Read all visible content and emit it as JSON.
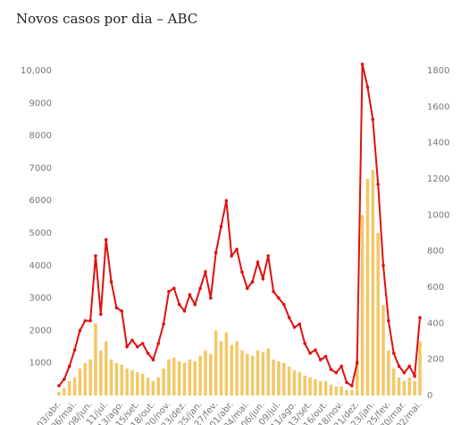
{
  "chart_data": {
    "type": "combo",
    "title": "Novos casos por dia – ABC",
    "categories": [
      "03/abr.",
      null,
      null,
      "06/mai.",
      null,
      null,
      "08/jun.",
      null,
      null,
      "11/jul.",
      null,
      null,
      "13/ago.",
      null,
      null,
      "15/set.",
      null,
      null,
      "18/out.",
      null,
      null,
      "20/nov.",
      null,
      null,
      "23/dez.",
      null,
      null,
      "25/jan.",
      null,
      null,
      "27/fev.",
      null,
      null,
      "01/abr.",
      null,
      null,
      "04/mai.",
      null,
      null,
      "06/jun.",
      null,
      null,
      "09/jul.",
      null,
      null,
      "11/ago.",
      null,
      null,
      "13/set.",
      null,
      null,
      "16/out.",
      null,
      null,
      "18/nov.",
      null,
      null,
      "21/dez.",
      null,
      null,
      "23/jan.",
      null,
      null,
      "25/fev.",
      null,
      null,
      "30/mar.",
      null,
      null,
      "02/mai."
    ],
    "series": [
      {
        "type": "bar",
        "axis": "y2",
        "color": "#f2c866",
        "values": [
          20,
          40,
          80,
          100,
          150,
          180,
          200,
          400,
          250,
          300,
          200,
          180,
          170,
          150,
          140,
          130,
          120,
          100,
          80,
          100,
          150,
          200,
          210,
          190,
          180,
          200,
          190,
          220,
          250,
          230,
          360,
          300,
          350,
          280,
          300,
          250,
          230,
          220,
          250,
          240,
          260,
          200,
          190,
          180,
          160,
          140,
          130,
          110,
          100,
          90,
          80,
          80,
          60,
          50,
          50,
          30,
          30,
          200,
          1000,
          1200,
          1250,
          900,
          500,
          250,
          150,
          100,
          80,
          100,
          80,
          300
        ]
      },
      {
        "type": "line",
        "axis": "y",
        "color": "#e01010",
        "values": [
          300,
          500,
          900,
          1400,
          2000,
          2300,
          2300,
          4300,
          2500,
          4800,
          3500,
          2700,
          2600,
          1500,
          1700,
          1500,
          1600,
          1300,
          1100,
          1600,
          2200,
          3200,
          3300,
          2800,
          2600,
          3100,
          2800,
          3300,
          3800,
          3000,
          4400,
          5200,
          6000,
          4300,
          4500,
          3800,
          3300,
          3500,
          4100,
          3600,
          4300,
          3200,
          3000,
          2800,
          2400,
          2100,
          2200,
          1600,
          1300,
          1400,
          1100,
          1200,
          800,
          700,
          900,
          400,
          300,
          1000,
          10200,
          9500,
          8500,
          6500,
          4000,
          2300,
          1300,
          900,
          700,
          900,
          600,
          2400
        ]
      }
    ],
    "ylim": [
      0,
      10000
    ],
    "yticks": [
      {
        "value": 1000,
        "label": "1000"
      },
      {
        "value": 2000,
        "label": "2000"
      },
      {
        "value": 3000,
        "label": "3000"
      },
      {
        "value": 4000,
        "label": "4000"
      },
      {
        "value": 5000,
        "label": "5000"
      },
      {
        "value": 6000,
        "label": "6000"
      },
      {
        "value": 7000,
        "label": "7000"
      },
      {
        "value": 8000,
        "label": "8000"
      },
      {
        "value": 9000,
        "label": "9000"
      },
      {
        "value": 10000,
        "label": "10,000"
      }
    ],
    "y2lim": [
      0,
      1800
    ],
    "y2ticks": [
      0,
      200,
      400,
      600,
      800,
      1000,
      1200,
      1400,
      1600,
      1800
    ],
    "grid": false
  }
}
